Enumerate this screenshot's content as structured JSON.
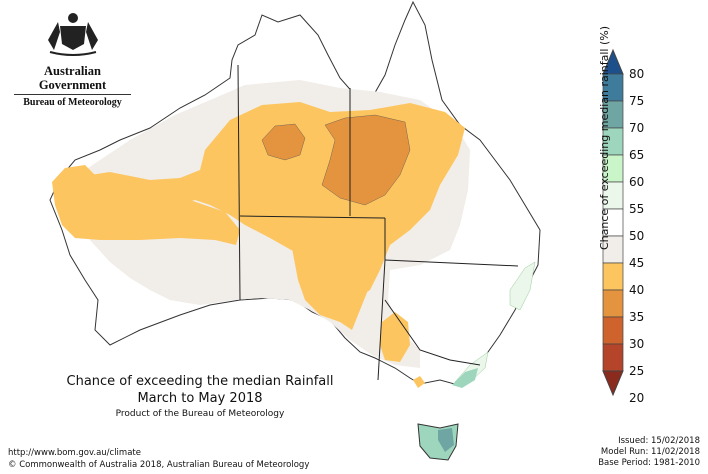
{
  "header": {
    "organization": "Australian Government",
    "agency": "Bureau of Meteorology"
  },
  "map": {
    "title": "Chance of exceeding the median Rainfall",
    "period": "March to May 2018",
    "product_line": "Product of the Bureau of Meteorology"
  },
  "legend": {
    "title": "Chance of exceeding median rainfall (%)",
    "levels": [
      {
        "label": "80",
        "color": "#1d4f8a"
      },
      {
        "label": "75",
        "color": "#3f7c9c"
      },
      {
        "label": "70",
        "color": "#6fa6a4"
      },
      {
        "label": "65",
        "color": "#9dd6bd"
      },
      {
        "label": "60",
        "color": "#c9f5c9"
      },
      {
        "label": "55",
        "color": "#eaf7ea"
      },
      {
        "label": "50",
        "color": "#ffffff"
      },
      {
        "label": "45",
        "color": "#f1ede8"
      },
      {
        "label": "40",
        "color": "#fdc55f"
      },
      {
        "label": "35",
        "color": "#e4933f"
      },
      {
        "label": "30",
        "color": "#cf632d"
      },
      {
        "label": "25",
        "color": "#b4452a"
      },
      {
        "label": "20",
        "color": "#8a2b1e"
      }
    ]
  },
  "footer": {
    "url": "http://www.bom.gov.au/climate",
    "copyright": "© Commonwealth of Australia 2018, Australian Bureau of Meteorology",
    "issued": "Issued: 15/02/2018",
    "model_run": "Model Run: 11/02/2018",
    "base_period": "Base Period: 1981-2010"
  }
}
